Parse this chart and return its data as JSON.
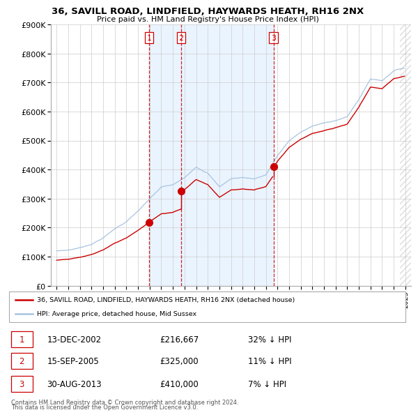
{
  "title": "36, SAVILL ROAD, LINDFIELD, HAYWARDS HEATH, RH16 2NX",
  "subtitle": "Price paid vs. HM Land Registry's House Price Index (HPI)",
  "legend_line1": "36, SAVILL ROAD, LINDFIELD, HAYWARDS HEATH, RH16 2NX (detached house)",
  "legend_line2": "HPI: Average price, detached house, Mid Sussex",
  "footer1": "Contains HM Land Registry data © Crown copyright and database right 2024.",
  "footer2": "This data is licensed under the Open Government Licence v3.0.",
  "transactions": [
    {
      "num": 1,
      "date": "13-DEC-2002",
      "price": 216667,
      "year": 2002.96,
      "pct": "32%",
      "dir": "↓"
    },
    {
      "num": 2,
      "date": "15-SEP-2005",
      "price": 325000,
      "year": 2005.71,
      "pct": "11%",
      "dir": "↓"
    },
    {
      "num": 3,
      "date": "30-AUG-2013",
      "price": 410000,
      "year": 2013.66,
      "pct": "7%",
      "dir": "↓"
    }
  ],
  "table_rows": [
    {
      "num": 1,
      "date": "13-DEC-2002",
      "price": "£216,667",
      "pct": "32% ↓ HPI"
    },
    {
      "num": 2,
      "date": "15-SEP-2005",
      "price": "£325,000",
      "pct": "11% ↓ HPI"
    },
    {
      "num": 3,
      "date": "30-AUG-2013",
      "price": "£410,000",
      "pct": "7% ↓ HPI"
    }
  ],
  "hpi_color": "#a8c4e0",
  "price_color": "#cc0000",
  "vline_color": "#cc0000",
  "shade_color": "#ddeeff",
  "background_color": "#ffffff",
  "plot_bg_color": "#ffffff",
  "grid_color": "#cccccc",
  "ylim": [
    0,
    900000
  ],
  "yticks": [
    0,
    100000,
    200000,
    300000,
    400000,
    500000,
    600000,
    700000,
    800000,
    900000
  ],
  "xlim_start": 1994.5,
  "xlim_end": 2025.5,
  "xticks": [
    1995,
    1996,
    1997,
    1998,
    1999,
    2000,
    2001,
    2002,
    2003,
    2004,
    2005,
    2006,
    2007,
    2008,
    2009,
    2010,
    2011,
    2012,
    2013,
    2014,
    2015,
    2016,
    2017,
    2018,
    2019,
    2020,
    2021,
    2022,
    2023,
    2024,
    2025
  ]
}
